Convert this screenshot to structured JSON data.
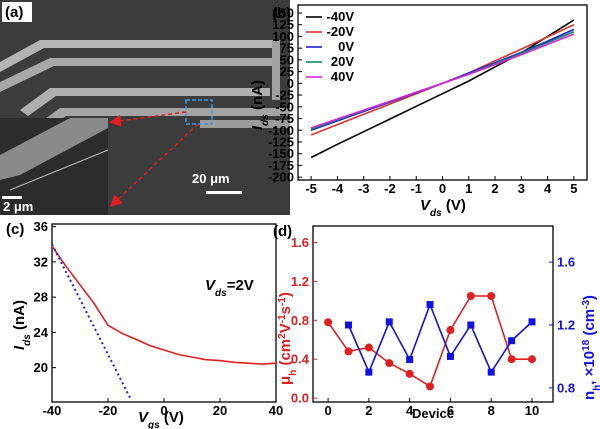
{
  "panel_a": {
    "panel_label": "(a)",
    "inset_scale": "2 μm",
    "main_scale": "20 μm"
  },
  "chart_data": [
    {
      "type": "line",
      "panel_label": "(b)",
      "xlabel": [
        "V",
        "ds",
        " (V)"
      ],
      "ylabel": [
        "I",
        "ds",
        " (nA)"
      ],
      "x": [
        -5,
        -4,
        -3,
        -2,
        -1,
        0,
        1,
        2,
        3,
        4,
        5
      ],
      "series": [
        {
          "name": "-40V",
          "color": "#000000",
          "values": [
            -158,
            -130,
            -103,
            -76,
            -49,
            -22,
            5,
            35,
            65,
            100,
            135
          ]
        },
        {
          "name": "-20V",
          "color": "#e03030",
          "values": [
            -110,
            -88,
            -66,
            -44,
            -22,
            0,
            22,
            48,
            73,
            99,
            125
          ]
        },
        {
          "name": "0V",
          "color": "#2020e0",
          "values": [
            -100,
            -80,
            -60,
            -40,
            -20,
            0,
            22,
            44,
            66,
            90,
            115
          ]
        },
        {
          "name": "20V",
          "color": "#0a8a5a",
          "values": [
            -98,
            -78,
            -58,
            -39,
            -19,
            0,
            20,
            42,
            64,
            87,
            110
          ]
        },
        {
          "name": "40V",
          "color": "#e020e0",
          "values": [
            -95,
            -76,
            -57,
            -38,
            -19,
            0,
            19,
            40,
            61,
            83,
            105
          ]
        }
      ],
      "xlim": [
        -5.5,
        5.5
      ],
      "xticks": [
        -5,
        -4,
        -3,
        -2,
        -1,
        0,
        1,
        2,
        3,
        4,
        5
      ],
      "ylim": [
        -206,
        167
      ],
      "yticks": [
        -200,
        -175,
        -150,
        -125,
        -100,
        -75,
        -50,
        -25,
        0,
        25,
        50,
        75,
        100,
        125,
        150
      ],
      "legend": "upper left"
    },
    {
      "type": "line",
      "panel_label": "(c)",
      "xlabel": [
        "V",
        "gs",
        " (V)"
      ],
      "ylabel": [
        "I",
        "ds",
        " (nA)"
      ],
      "annotation": [
        "V",
        "ds",
        "=2V"
      ],
      "series": [
        {
          "color": "#e02020",
          "x": [
            -40,
            -35,
            -30,
            -25,
            -20,
            -15,
            -10,
            -5,
            0,
            5,
            10,
            15,
            20,
            25,
            30,
            35,
            40
          ],
          "values": [
            33.8,
            31.5,
            29.4,
            27.3,
            24.8,
            23.9,
            23.2,
            22.5,
            22.0,
            21.5,
            21.2,
            20.9,
            20.8,
            20.6,
            20.5,
            20.4,
            20.5
          ]
        },
        {
          "color": "#2020e0",
          "linestyle": "dotted",
          "x": [
            -40,
            -12
          ],
          "values": [
            34,
            16.5
          ]
        }
      ],
      "xlim": [
        -40,
        40
      ],
      "xticks": [
        -40,
        -20,
        0,
        20,
        40
      ],
      "ylim": [
        16.1,
        36.3
      ],
      "yticks": [
        20,
        24,
        28,
        32,
        36
      ]
    },
    {
      "type": "line",
      "panel_label": "(d)",
      "xlabel": "Device",
      "ylabel": [
        "μ",
        "h",
        " (cm",
        "2",
        "V",
        "-1",
        "s",
        "-1",
        ")"
      ],
      "y2label": [
        "n",
        "h",
        ", ×10",
        "18",
        " (cm",
        "-3",
        ")"
      ],
      "x": [
        0,
        1,
        2,
        3,
        4,
        5,
        6,
        7,
        8,
        9,
        10
      ],
      "series": [
        {
          "color": "#e02020",
          "marker": "circle",
          "values": [
            0.78,
            0.48,
            0.52,
            0.36,
            0.25,
            0.12,
            0.7,
            1.05,
            1.05,
            0.4,
            0.4
          ]
        },
        {
          "color": "#1010e0",
          "marker": "square",
          "axis": "y2",
          "values": [
            null,
            1.2,
            0.9,
            1.22,
            0.98,
            1.33,
            1.0,
            1.2,
            0.9,
            1.1,
            1.22
          ]
        }
      ],
      "xlim": [
        -0.74,
        11.03
      ],
      "xticks": [
        0,
        2,
        4,
        6,
        8,
        10
      ],
      "ylim": [
        -0.04,
        1.77
      ],
      "yticks": [
        {
          "value": 0,
          "label": "0.0"
        },
        0.4,
        0.8,
        1.2,
        1.6
      ],
      "ycolor": "#e02020",
      "y2lim": [
        0.71,
        1.83
      ],
      "y2ticks": [
        0.8,
        1.2,
        1.6
      ],
      "y2color": "#1010e0"
    }
  ]
}
